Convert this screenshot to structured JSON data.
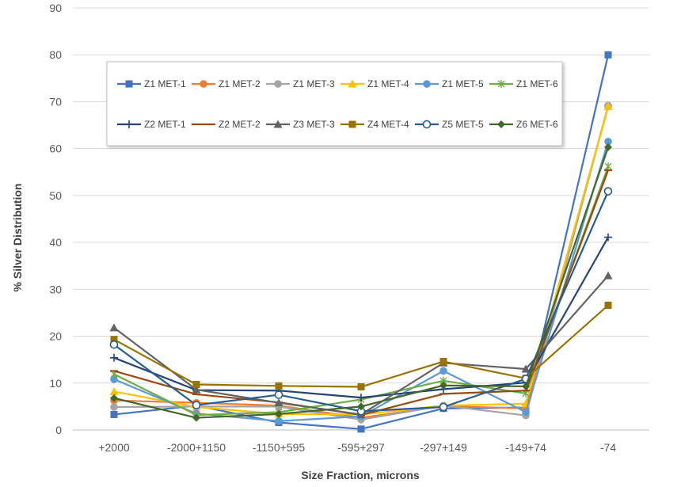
{
  "chart_data": {
    "type": "line",
    "title": "",
    "xlabel": "Size Fraction, microns",
    "ylabel": "% Silver Distribution",
    "categories": [
      "+2000",
      "-2000+1150",
      "-1150+595",
      "-595+297",
      "-297+149",
      "-149+74",
      "-74"
    ],
    "ylim": [
      0,
      90
    ],
    "yticks": [
      0,
      10,
      20,
      30,
      40,
      50,
      60,
      70,
      80,
      90
    ],
    "grid": "horizontal",
    "legend_position": "inside-top-left",
    "series": [
      {
        "name": "Z1 MET-1",
        "color": "#4472C4",
        "marker": "square",
        "values": [
          3.3,
          5.2,
          1.6,
          0.2,
          4.6,
          4.8,
          80.0
        ]
      },
      {
        "name": "Z1 MET-2",
        "color": "#ED7D31",
        "marker": "circle",
        "values": [
          6.3,
          5.8,
          5.2,
          2.6,
          5.1,
          4.6,
          69.0
        ]
      },
      {
        "name": "Z1 MET-3",
        "color": "#A5A5A5",
        "marker": "circle",
        "values": [
          4.9,
          5.0,
          5.0,
          2.2,
          5.2,
          3.1,
          69.2
        ]
      },
      {
        "name": "Z1 MET-4",
        "color": "#FFC000",
        "marker": "triangle",
        "values": [
          8.2,
          4.9,
          3.4,
          3.3,
          5.2,
          5.6,
          69.0
        ]
      },
      {
        "name": "Z1 MET-5",
        "color": "#5B9BD5",
        "marker": "circle",
        "values": [
          10.8,
          3.5,
          1.9,
          2.9,
          12.6,
          3.8,
          61.5
        ]
      },
      {
        "name": "Z1 MET-6",
        "color": "#70AD47",
        "marker": "asterisk",
        "values": [
          11.9,
          3.2,
          3.8,
          6.5,
          10.5,
          7.8,
          56.2
        ]
      },
      {
        "name": "Z2 MET-1",
        "color": "#264478",
        "marker": "plus",
        "values": [
          15.4,
          8.5,
          8.4,
          6.9,
          8.7,
          10.1,
          41.1
        ]
      },
      {
        "name": "Z2 MET-2",
        "color": "#9E480E",
        "marker": "dash",
        "values": [
          12.6,
          7.6,
          5.9,
          3.2,
          7.7,
          8.4,
          55.4
        ]
      },
      {
        "name": "Z3 MET-3",
        "color": "#636363",
        "marker": "triangle",
        "values": [
          21.8,
          8.6,
          5.8,
          3.3,
          14.3,
          13.0,
          32.9
        ]
      },
      {
        "name": "Z4 MET-4",
        "color": "#997300",
        "marker": "square",
        "values": [
          19.3,
          9.7,
          9.4,
          9.2,
          14.6,
          11.0,
          26.6
        ]
      },
      {
        "name": "Z5 MET-5",
        "color": "#255E91",
        "marker": "open-circle",
        "values": [
          18.2,
          5.3,
          7.5,
          4.0,
          4.9,
          10.9,
          50.9
        ]
      },
      {
        "name": "Z6 MET-6",
        "color": "#43682B",
        "marker": "diamond",
        "values": [
          6.8,
          2.6,
          3.4,
          5.0,
          9.5,
          9.3,
          60.3
        ]
      }
    ]
  }
}
